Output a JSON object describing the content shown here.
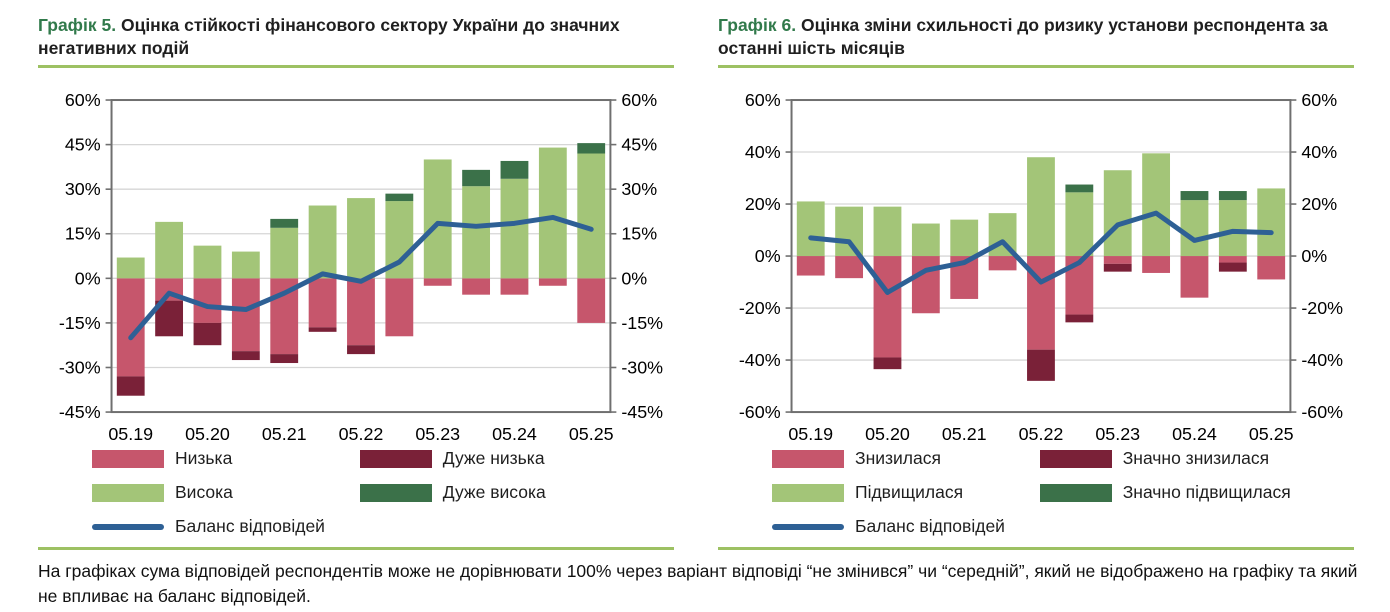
{
  "colors": {
    "pink": "#c6566c",
    "maroon": "#7a2138",
    "lightgreen": "#a3c578",
    "darkgreen": "#3b7149",
    "blue": "#2e6095",
    "title_green": "#317a4b",
    "rule_green": "#9dc163",
    "grid": "#d6d6d6",
    "axis": "#6f6f6f",
    "text": "#1a1a1a"
  },
  "footnote": "На графіках сума відповідей респондентів може не дорівнювати 100% через варіант відповіді “не змінився” чи “середній”, який не відображено на графіку та який не впливає на баланс відповідей.",
  "charts": [
    {
      "title_prefix": "Графік 5.",
      "title_rest": "Оцінка стійкості фінансового сектору України до значних негативних подій",
      "legend": [
        {
          "label": "Низька",
          "swatch": "pink"
        },
        {
          "label": "Дуже низька",
          "swatch": "maroon"
        },
        {
          "label": "Висока",
          "swatch": "lightgreen"
        },
        {
          "label": "Дуже висока",
          "swatch": "darkgreen"
        },
        {
          "label": "Баланс відповідей",
          "swatch": "line"
        }
      ],
      "chart_data": {
        "type": "bar",
        "subtype": "stacked-bar-with-line",
        "x": [
          "05.19",
          "11.19",
          "05.20",
          "11.20",
          "05.21",
          "11.21",
          "05.22",
          "11.22",
          "05.23",
          "11.23",
          "05.24",
          "11.24",
          "05.25"
        ],
        "x_tick_labels": [
          "05.19",
          "05.20",
          "05.21",
          "05.22",
          "05.23",
          "05.24",
          "05.25"
        ],
        "x_tick_indices": [
          0,
          2,
          4,
          6,
          8,
          10,
          12
        ],
        "ylim": [
          -45,
          60
        ],
        "yticks": [
          60,
          45,
          30,
          15,
          0,
          -15,
          -30,
          -45
        ],
        "grid": true,
        "series": [
          {
            "name": "Низька",
            "color": "pink",
            "values": [
              -33,
              -7.5,
              -15,
              -24.5,
              -25.5,
              -16.5,
              -22.5,
              -19.5,
              -2.5,
              -5.5,
              -5.5,
              -2.5,
              -15
            ]
          },
          {
            "name": "Дуже низька",
            "color": "maroon",
            "values": [
              -6.5,
              -12,
              -7.5,
              -3,
              -3,
              -1.5,
              -3,
              0,
              0,
              0,
              0,
              0,
              0
            ]
          },
          {
            "name": "Висока",
            "color": "lightgreen",
            "values": [
              7,
              19,
              11,
              9,
              17,
              24.5,
              27,
              26,
              40,
              31,
              33.5,
              44,
              42
            ]
          },
          {
            "name": "Дуже висока",
            "color": "darkgreen",
            "values": [
              0,
              0,
              0,
              0,
              3,
              0,
              0,
              2.5,
              0,
              5.5,
              6,
              0,
              3.5
            ]
          }
        ],
        "line_series": {
          "name": "Баланс відповідей",
          "color": "blue",
          "values": [
            -20,
            -5,
            -9.5,
            -10.5,
            -5,
            1.5,
            -1,
            5.5,
            18.5,
            17.5,
            18.5,
            20.5,
            16.5
          ]
        }
      }
    },
    {
      "title_prefix": "Графік 6.",
      "title_rest": "Оцінка зміни схильності до ризику установи респондента за останні шість місяців",
      "legend": [
        {
          "label": "Знизилася",
          "swatch": "pink"
        },
        {
          "label": "Значно знизилася",
          "swatch": "maroon"
        },
        {
          "label": "Підвищилася",
          "swatch": "lightgreen"
        },
        {
          "label": "Значно підвищилася",
          "swatch": "darkgreen"
        },
        {
          "label": "Баланс відповідей",
          "swatch": "line"
        }
      ],
      "chart_data": {
        "type": "bar",
        "subtype": "stacked-bar-with-line",
        "x": [
          "05.19",
          "11.19",
          "05.20",
          "11.20",
          "05.21",
          "11.21",
          "05.22",
          "11.22",
          "05.23",
          "11.23",
          "05.24",
          "11.24",
          "05.25"
        ],
        "x_tick_labels": [
          "05.19",
          "05.20",
          "05.21",
          "05.22",
          "05.23",
          "05.24",
          "05.25"
        ],
        "x_tick_indices": [
          0,
          2,
          4,
          6,
          8,
          10,
          12
        ],
        "ylim": [
          -60,
          60
        ],
        "yticks": [
          60,
          40,
          20,
          0,
          -20,
          -40,
          -60
        ],
        "grid": true,
        "series": [
          {
            "name": "Знизилася",
            "color": "pink",
            "values": [
              -7.5,
              -8.5,
              -39,
              -22,
              -16.5,
              -5.5,
              -36,
              -22.5,
              -3,
              -6.5,
              -16,
              -2.5,
              -9
            ]
          },
          {
            "name": "Значно знизилася",
            "color": "maroon",
            "values": [
              0,
              0,
              -4.5,
              0,
              0,
              0,
              -12,
              -3,
              -3,
              0,
              0,
              -3.5,
              0
            ]
          },
          {
            "name": "Підвищилася",
            "color": "lightgreen",
            "values": [
              21,
              19,
              19,
              12.5,
              14,
              16.5,
              38,
              24.5,
              33,
              39.5,
              21.5,
              21.5,
              26
            ]
          },
          {
            "name": "Значно підвищилася",
            "color": "darkgreen",
            "values": [
              0,
              0,
              0,
              0,
              0,
              0,
              0,
              3,
              0,
              0,
              3.5,
              3.5,
              0
            ]
          }
        ],
        "line_series": {
          "name": "Баланс відповідей",
          "color": "blue",
          "values": [
            7,
            5.5,
            -14,
            -5.5,
            -2.5,
            5.5,
            -10,
            -2.5,
            12,
            16.5,
            6,
            9.5,
            9
          ]
        }
      }
    }
  ]
}
